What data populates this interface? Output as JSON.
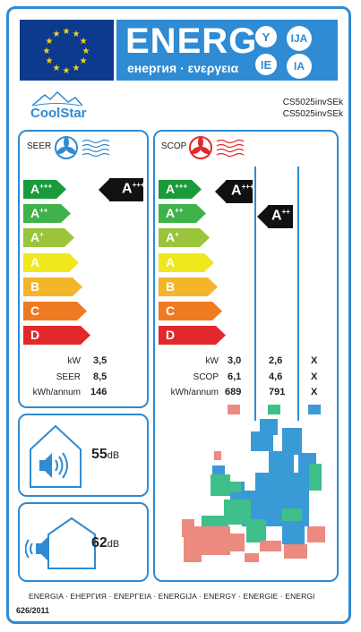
{
  "header": {
    "energ_title": "ENERG",
    "energ_subtitle": "енергия · ενεργεια",
    "lang_codes": [
      "Y",
      "IJA",
      "IE",
      "IA"
    ]
  },
  "supplier": {
    "brand": "CoolStar",
    "model_indoor": "CS5025invSEk",
    "model_outdoor": "CS5025invSEk"
  },
  "cooling": {
    "title": "SEER",
    "scale": [
      {
        "label": "A",
        "sup": "+++",
        "color": "#1a9a3a"
      },
      {
        "label": "A",
        "sup": "++",
        "color": "#3fb34a"
      },
      {
        "label": "A",
        "sup": "+",
        "color": "#9ac43a"
      },
      {
        "label": "A",
        "sup": "",
        "color": "#f0e81c"
      },
      {
        "label": "B",
        "sup": "",
        "color": "#f5b52a"
      },
      {
        "label": "C",
        "sup": "",
        "color": "#ee7b22"
      },
      {
        "label": "D",
        "sup": "",
        "color": "#e2282c"
      }
    ],
    "rating": {
      "label": "A",
      "sup": "+++"
    },
    "rows": [
      {
        "label": "kW",
        "value": "3,5"
      },
      {
        "label": "SEER",
        "value": "8,5"
      },
      {
        "label": "kWh/annum",
        "value": "146"
      }
    ]
  },
  "heating": {
    "title": "SCOP",
    "rating_average": {
      "label": "A",
      "sup": "+++"
    },
    "rating_warmer": {
      "label": "A",
      "sup": "++"
    },
    "rows": [
      {
        "label": "kW",
        "values": [
          "3,0",
          "2,6",
          "X"
        ]
      },
      {
        "label": "SCOP",
        "values": [
          "6,1",
          "4,6",
          "X"
        ]
      },
      {
        "label": "kWh/annum",
        "values": [
          "689",
          "791",
          "X"
        ]
      }
    ],
    "zone_colors": [
      "#ec8a80",
      "#3fbf8a",
      "#3a9ad6"
    ]
  },
  "noise": {
    "indoor_value": "55",
    "outdoor_value": "62",
    "unit": "dB"
  },
  "footer": {
    "languages": "ENERGIA · ЕНЕРГИЯ · ΕΝΕΡΓΕΙΑ · ENERGIJA · ENERGY · ENERGIE · ENERGI",
    "regulation": "626/2011"
  }
}
